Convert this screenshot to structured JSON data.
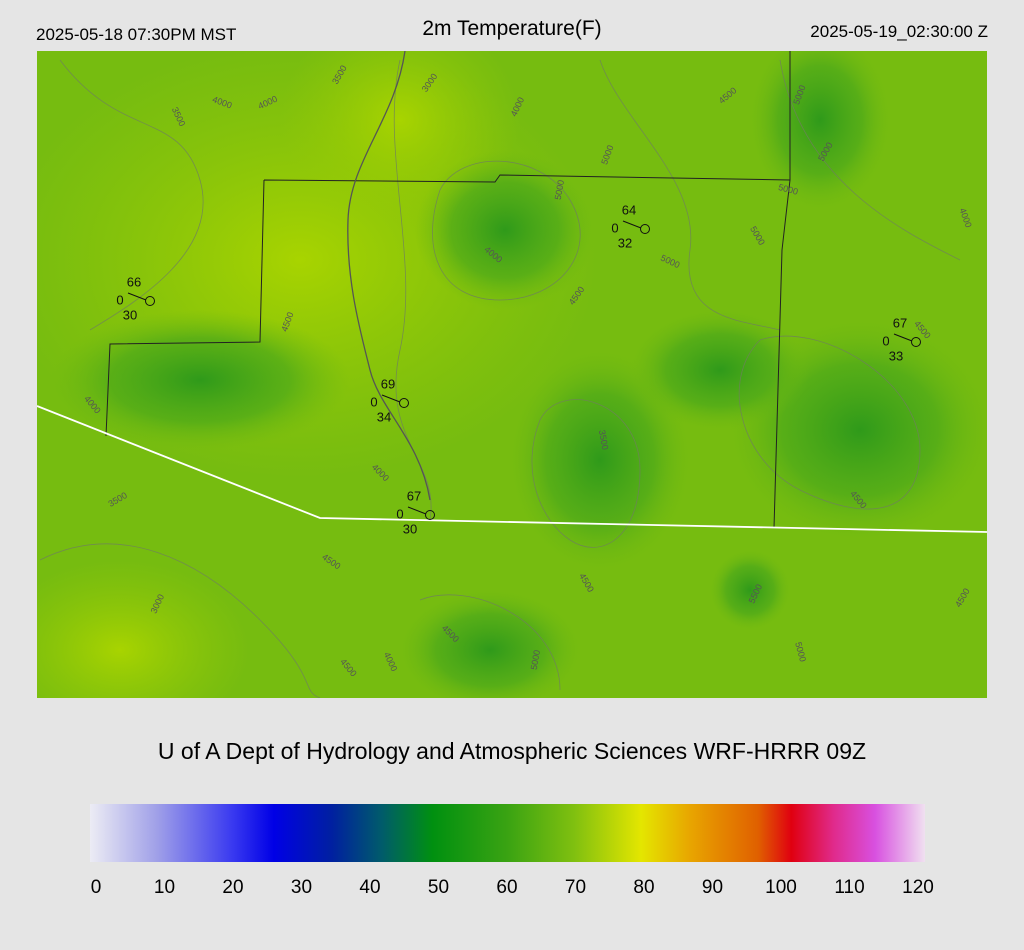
{
  "header": {
    "left": "2025-05-18 07:30PM MST",
    "title": "2m Temperature(F)",
    "right": "2025-05-19_02:30:00 Z"
  },
  "stations": [
    {
      "temp": 66,
      "wind": 0,
      "dewpoint": 30
    },
    {
      "temp": 64,
      "wind": 0,
      "dewpoint": 32
    },
    {
      "temp": 67,
      "wind": 0,
      "dewpoint": 33
    },
    {
      "temp": 69,
      "wind": 0,
      "dewpoint": 34
    },
    {
      "temp": 67,
      "wind": 0,
      "dewpoint": 30
    }
  ],
  "contour_labels": [
    3500,
    4000,
    4000,
    3500,
    3000,
    4000,
    4500,
    5000,
    5000,
    5000,
    5000,
    5000,
    5000,
    4000,
    4000,
    5000,
    4500,
    4500,
    4500,
    4000,
    3500,
    4000,
    3500,
    4500,
    4500,
    4500,
    5500,
    4500,
    3000,
    4500,
    5000,
    4000,
    4500,
    5000
  ],
  "credit": "U of A Dept of Hydrology and Atmospheric Sciences WRF-HRRR 09Z",
  "colorbar": {
    "lim": [
      0,
      120
    ],
    "ticks": [
      0,
      10,
      20,
      30,
      40,
      50,
      60,
      70,
      80,
      90,
      100,
      110,
      120
    ]
  }
}
